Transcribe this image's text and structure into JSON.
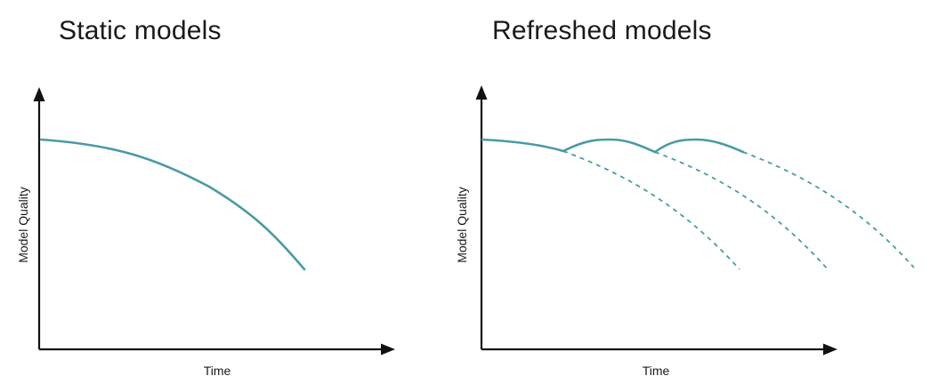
{
  "colors": {
    "axis": "#111111",
    "curve": "#4a9aa5",
    "text": "#1a1a1a"
  },
  "panels": [
    {
      "title": "Static models",
      "xlabel": "Time",
      "ylabel": "Model Quality"
    },
    {
      "title": "Refreshed models",
      "xlabel": "Time",
      "ylabel": "Model Quality"
    }
  ]
}
